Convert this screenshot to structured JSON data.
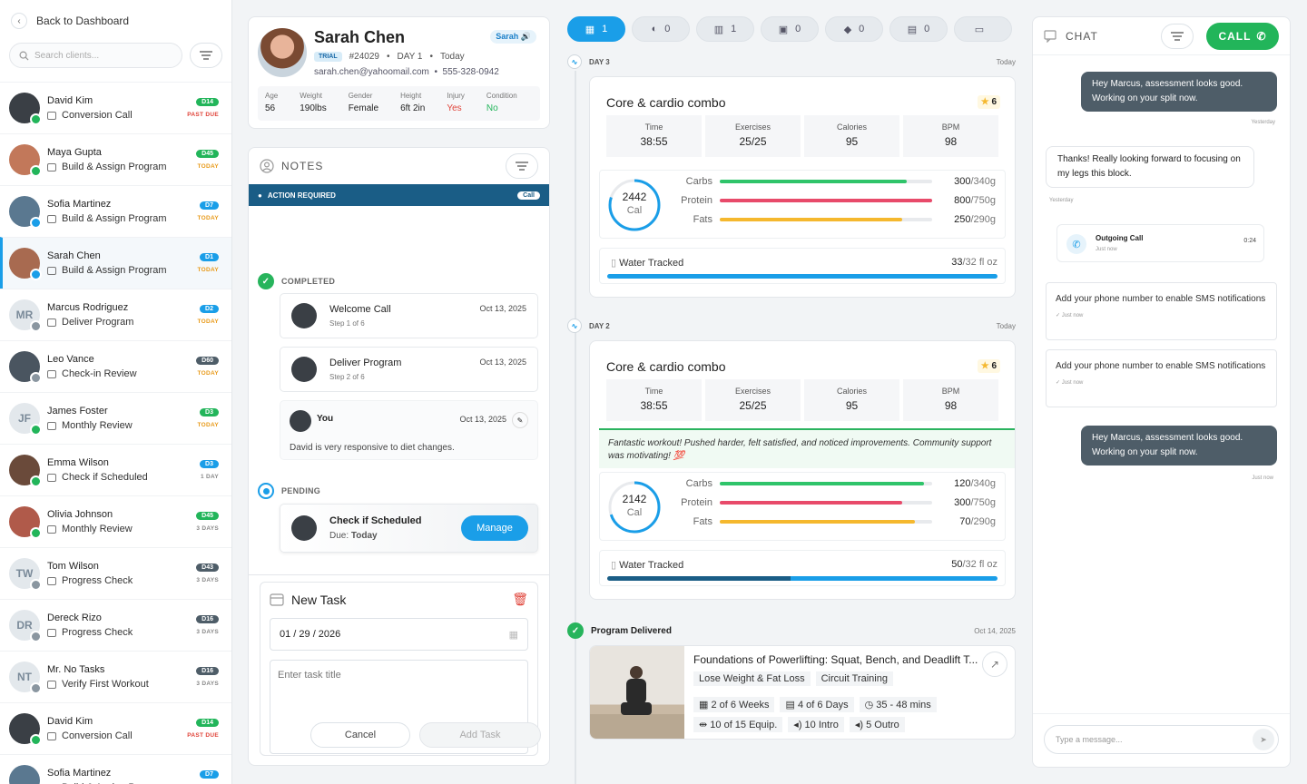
{
  "sidebar": {
    "back": "Back to Dashboard",
    "search_placeholder": "Search clients...",
    "clients": [
      {
        "name": "David Kim",
        "task": "Conversion Call",
        "badge": "D14",
        "badge_color": "#22b55a",
        "due": "PAST DUE",
        "due_color": "#e0443a",
        "initials": "",
        "av": "#3a3f45",
        "dot": "#22b55a"
      },
      {
        "name": "Maya Gupta",
        "task": "Build & Assign Program",
        "badge": "D45",
        "badge_color": "#22b55a",
        "due": "TODAY",
        "due_color": "#e89a1a",
        "initials": "",
        "av": "#c2785a",
        "dot": "#22b55a"
      },
      {
        "name": "Sofia Martinez",
        "task": "Build & Assign Program",
        "badge": "D7",
        "badge_color": "#1a9ee8",
        "due": "TODAY",
        "due_color": "#e89a1a",
        "initials": "",
        "av": "#5a7890",
        "dot": "#1a9ee8"
      },
      {
        "name": "Sarah Chen",
        "task": "Build & Assign Program",
        "badge": "D1",
        "badge_color": "#1a9ee8",
        "due": "TODAY",
        "due_color": "#e89a1a",
        "initials": "",
        "av": "#a86a50",
        "dot": "#1a9ee8"
      },
      {
        "name": "Marcus Rodriguez",
        "task": "Deliver Program",
        "badge": "D2",
        "badge_color": "#1a9ee8",
        "due": "TODAY",
        "due_color": "#e89a1a",
        "initials": "MR",
        "av": "#e3e8ec",
        "dot": "#8a96a0"
      },
      {
        "name": "Leo Vance",
        "task": "Check-in Review",
        "badge": "D60",
        "badge_color": "#4e5d68",
        "due": "TODAY",
        "due_color": "#e89a1a",
        "initials": "",
        "av": "#4a5560",
        "dot": "#8a96a0"
      },
      {
        "name": "James Foster",
        "task": "Monthly Review",
        "badge": "D3",
        "badge_color": "#22b55a",
        "due": "TODAY",
        "due_color": "#e89a1a",
        "initials": "JF",
        "av": "#e3e8ec",
        "dot": "#22b55a"
      },
      {
        "name": "Emma Wilson",
        "task": "Check if Scheduled",
        "badge": "D3",
        "badge_color": "#1a9ee8",
        "due": "1 DAY",
        "due_color": "#888",
        "initials": "",
        "av": "#6a4a3a",
        "dot": "#22b55a"
      },
      {
        "name": "Olivia Johnson",
        "task": "Monthly Review",
        "badge": "D45",
        "badge_color": "#22b55a",
        "due": "3 DAYS",
        "due_color": "#888",
        "initials": "",
        "av": "#b05a4a",
        "dot": "#22b55a"
      },
      {
        "name": "Tom Wilson",
        "task": "Progress Check",
        "badge": "D43",
        "badge_color": "#4e5d68",
        "due": "3 DAYS",
        "due_color": "#888",
        "initials": "TW",
        "av": "#e3e8ec",
        "dot": "#8a96a0"
      },
      {
        "name": "Dereck Rizo",
        "task": "Progress Check",
        "badge": "D16",
        "badge_color": "#4e5d68",
        "due": "3 DAYS",
        "due_color": "#888",
        "initials": "DR",
        "av": "#e3e8ec",
        "dot": "#8a96a0"
      },
      {
        "name": "Mr. No Tasks",
        "task": "Verify First Workout",
        "badge": "D16",
        "badge_color": "#4e5d68",
        "due": "3 DAYS",
        "due_color": "#888",
        "initials": "NT",
        "av": "#e3e8ec",
        "dot": "#8a96a0"
      },
      {
        "name": "David Kim",
        "task": "Conversion Call",
        "badge": "D14",
        "badge_color": "#22b55a",
        "due": "PAST DUE",
        "due_color": "#e0443a",
        "initials": "",
        "av": "#3a3f45",
        "dot": "#22b55a"
      },
      {
        "name": "Sofia Martinez",
        "task": "Build & Assign Program",
        "badge": "D7",
        "badge_color": "#1a9ee8",
        "due": "TODAY",
        "due_color": "#e89a1a",
        "initials": "",
        "av": "#5a7890",
        "dot": "#1a9ee8"
      }
    ]
  },
  "profile": {
    "name": "Sarah Chen",
    "tag": "Sarah",
    "trial": "TRIAL",
    "id": "#24029",
    "day": "DAY 1",
    "when": "Today",
    "email": "sarah.chen@yahoomail.com",
    "phone": "555-328-0942",
    "stats": [
      {
        "label": "Age",
        "value": "56",
        "color": "#222"
      },
      {
        "label": "Weight",
        "value": "190lbs",
        "color": "#222"
      },
      {
        "label": "Gender",
        "value": "Female",
        "color": "#222"
      },
      {
        "label": "Height",
        "value": "6ft 2in",
        "color": "#222"
      },
      {
        "label": "Injury",
        "value": "Yes",
        "color": "#e0443a"
      },
      {
        "label": "Condition",
        "value": "No",
        "color": "#22b55a"
      }
    ]
  },
  "notes": {
    "title": "NOTES",
    "action": "ACTION REQUIRED",
    "call": "Call",
    "completed": "COMPLETED",
    "pending": "PENDING",
    "items": [
      {
        "title": "Welcome Call",
        "step": "Step 1 of 6",
        "date": "Oct 13, 2025"
      },
      {
        "title": "Deliver Program",
        "step": "Step 2 of 6",
        "date": "Oct 13, 2025"
      }
    ],
    "you": {
      "name": "You",
      "date": "Oct 13, 2025",
      "text": "David is very responsive to diet changes."
    },
    "pending_item": {
      "title": "Check if Scheduled",
      "due_label": "Due:",
      "due": "Today",
      "button": "Manage"
    },
    "newtask": {
      "title": "New Task",
      "date": "01 / 29 / 2026",
      "placeholder": "Enter task title",
      "cancel": "Cancel",
      "add": "Add Task"
    }
  },
  "timeline": {
    "tabs": [
      "1",
      "0",
      "1",
      "0",
      "0",
      "0",
      ""
    ],
    "days": [
      {
        "label": "DAY 3",
        "date": "Today",
        "workout": "Core & cardio combo",
        "stars": "6",
        "stats": [
          {
            "l": "Time",
            "v": "38:55"
          },
          {
            "l": "Exercises",
            "v": "25/25"
          },
          {
            "l": "Calories",
            "v": "95"
          },
          {
            "l": "BPM",
            "v": "98"
          }
        ],
        "cal": "2442",
        "cal_label": "Cal",
        "cal_pct": 0.8,
        "macros": [
          {
            "n": "Carbs",
            "v": "300",
            "t": "/340g",
            "pct": 0.88,
            "c": "#2fc46a"
          },
          {
            "n": "Protein",
            "v": "800",
            "t": "/750g",
            "pct": 1.0,
            "c": "#e84a6a"
          },
          {
            "n": "Fats",
            "v": "250",
            "t": "/290g",
            "pct": 0.86,
            "c": "#f5b82e"
          }
        ],
        "water_label": "Water Tracked",
        "water": "33",
        "water_t": "/32 fl oz",
        "water_pct": 1.0
      },
      {
        "label": "DAY 2",
        "date": "Today",
        "workout": "Core & cardio combo",
        "stars": "6",
        "stats": [
          {
            "l": "Time",
            "v": "38:55"
          },
          {
            "l": "Exercises",
            "v": "25/25"
          },
          {
            "l": "Calories",
            "v": "95"
          },
          {
            "l": "BPM",
            "v": "98"
          }
        ],
        "comment": "Fantastic workout! Pushed harder, felt satisfied, and noticed improvements. Community support was motivating! 💯",
        "cal": "2142",
        "cal_label": "Cal",
        "cal_pct": 0.7,
        "macros": [
          {
            "n": "Carbs",
            "v": "120",
            "t": "/340g",
            "pct": 0.96,
            "c": "#2fc46a"
          },
          {
            "n": "Protein",
            "v": "300",
            "t": "/750g",
            "pct": 0.86,
            "c": "#e84a6a"
          },
          {
            "n": "Fats",
            "v": "70",
            "t": "/290g",
            "pct": 0.92,
            "c": "#f5b82e"
          }
        ],
        "water_label": "Water Tracked",
        "water": "50",
        "water_t": "/32 fl oz",
        "water_pct": 0.47
      }
    ],
    "program": {
      "label": "Program Delivered",
      "date": "Oct 14, 2025",
      "title": "Foundations of Powerlifting: Squat, Bench, and Deadlift T...",
      "tags": [
        "Lose Weight & Fat Loss",
        "Circuit Training"
      ],
      "meta1": [
        "2 of 6 Weeks",
        "4 of 6 Days",
        "35 - 48 mins"
      ],
      "meta2": [
        "10 of 15 Equip.",
        "10 Intro",
        "5 Outro"
      ]
    }
  },
  "chat": {
    "title": "CHAT",
    "call": "CALL",
    "m1": "Hey Marcus, assessment looks good. Working on your split now.",
    "t1": "Yesterday",
    "m2": "Thanks! Really looking forward to focusing on my legs this block.",
    "t2": "Yesterday",
    "call_title": "Outgoing Call",
    "call_sub": "Just now",
    "call_dur": "0:24",
    "sms1": "Add your phone number to enable SMS notifications",
    "sms1_t": "Just now",
    "sms2": "Add your phone number to enable SMS notifications",
    "sms2_t": "Just now",
    "m3": "Hey Marcus, assessment looks good. Working on your split now.",
    "t3": "Just now",
    "placeholder": "Type a message..."
  }
}
